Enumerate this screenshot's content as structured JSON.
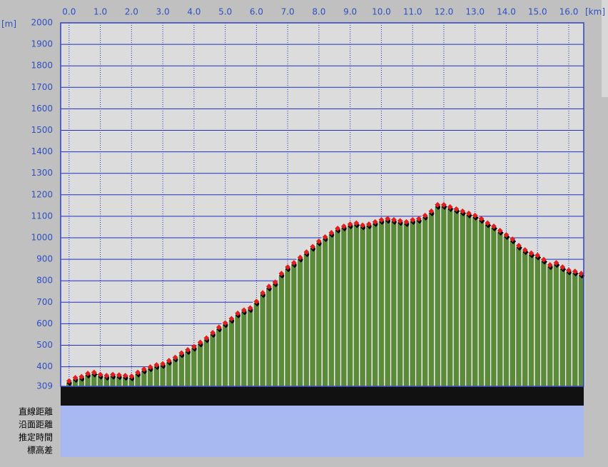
{
  "chart_data": {
    "type": "bar",
    "x_unit": "[km]",
    "y_unit": "[m]",
    "x": [
      0.0,
      0.2,
      0.4,
      0.6,
      0.8,
      1.0,
      1.2,
      1.4,
      1.6,
      1.8,
      2.0,
      2.2,
      2.4,
      2.6,
      2.8,
      3.0,
      3.2,
      3.4,
      3.6,
      3.8,
      4.0,
      4.2,
      4.4,
      4.6,
      4.8,
      5.0,
      5.2,
      5.4,
      5.6,
      5.8,
      6.0,
      6.2,
      6.4,
      6.6,
      6.8,
      7.0,
      7.2,
      7.4,
      7.6,
      7.8,
      8.0,
      8.2,
      8.4,
      8.6,
      8.8,
      9.0,
      9.2,
      9.4,
      9.6,
      9.8,
      10.0,
      10.2,
      10.4,
      10.6,
      10.8,
      11.0,
      11.2,
      11.4,
      11.6,
      11.8,
      12.0,
      12.2,
      12.4,
      12.6,
      12.8,
      13.0,
      13.2,
      13.4,
      13.6,
      13.8,
      14.0,
      14.2,
      14.4,
      14.6,
      14.8,
      15.0,
      15.2,
      15.4,
      15.6,
      15.8,
      16.0,
      16.2,
      16.4
    ],
    "values": [
      330,
      345,
      350,
      365,
      370,
      360,
      355,
      360,
      358,
      355,
      352,
      370,
      385,
      395,
      405,
      410,
      425,
      440,
      460,
      475,
      490,
      510,
      530,
      555,
      580,
      600,
      620,
      645,
      660,
      670,
      700,
      740,
      770,
      790,
      830,
      860,
      880,
      905,
      930,
      955,
      980,
      1000,
      1020,
      1040,
      1050,
      1060,
      1065,
      1055,
      1060,
      1070,
      1080,
      1085,
      1080,
      1075,
      1070,
      1080,
      1085,
      1100,
      1120,
      1150,
      1150,
      1140,
      1130,
      1120,
      1110,
      1100,
      1085,
      1065,
      1050,
      1030,
      1010,
      990,
      960,
      940,
      925,
      915,
      895,
      870,
      880,
      860,
      845,
      840,
      830
    ],
    "color": "#5a8a3a",
    "marker_color": "#e02020",
    "xlim": [
      -0.27,
      16.48
    ],
    "xticks": [
      {
        "value": 0,
        "label": "0.0"
      },
      {
        "value": 1,
        "label": "1.0"
      },
      {
        "value": 2,
        "label": "2.0"
      },
      {
        "value": 3,
        "label": "3.0"
      },
      {
        "value": 4,
        "label": "4.0"
      },
      {
        "value": 5,
        "label": "5.0"
      },
      {
        "value": 6,
        "label": "6.0"
      },
      {
        "value": 7,
        "label": "7.0"
      },
      {
        "value": 8,
        "label": "8.0"
      },
      {
        "value": 9,
        "label": "9.0"
      },
      {
        "value": 10,
        "label": "10.0"
      },
      {
        "value": 11,
        "label": "11.0"
      },
      {
        "value": 12,
        "label": "12.0"
      },
      {
        "value": 13,
        "label": "13.0"
      },
      {
        "value": 14,
        "label": "14.0"
      },
      {
        "value": 15,
        "label": "15.0"
      },
      {
        "value": 16,
        "label": "16.0"
      }
    ],
    "ylim": [
      309,
      2000
    ],
    "yticks": [
      309,
      400,
      500,
      600,
      700,
      800,
      900,
      1000,
      1100,
      1200,
      1300,
      1400,
      1500,
      1600,
      1700,
      1800,
      1900,
      2000
    ],
    "grid": true,
    "rows": [
      "直線距離",
      "沿面距離",
      "推定時間",
      "標高差"
    ]
  }
}
